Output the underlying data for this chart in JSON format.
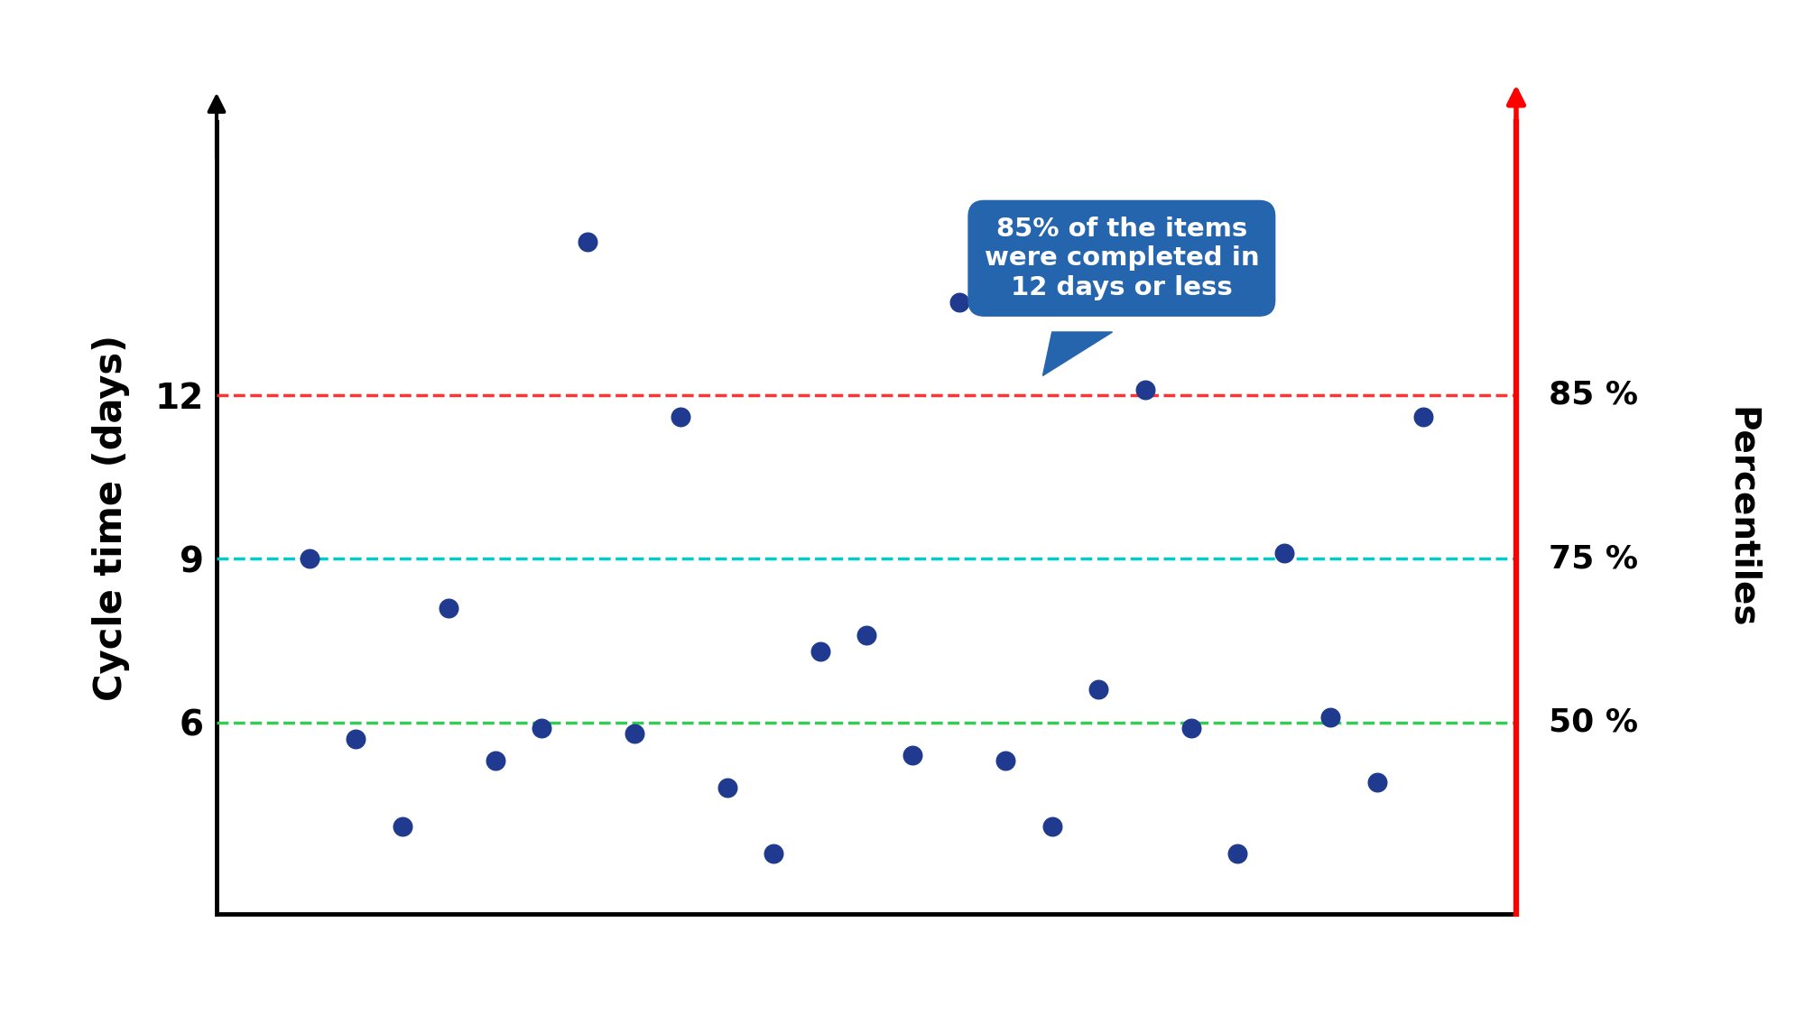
{
  "scatter_x": [
    2,
    3,
    4,
    5,
    6,
    7,
    8,
    9,
    10,
    11,
    12,
    13,
    14,
    15,
    16,
    17,
    18,
    19,
    20,
    21,
    22,
    23,
    24,
    25,
    26
  ],
  "scatter_y": [
    9,
    5.7,
    4.1,
    8.1,
    5.3,
    5.9,
    14.8,
    5.8,
    11.6,
    4.8,
    3.6,
    7.3,
    7.6,
    5.4,
    13.7,
    5.3,
    4.1,
    6.6,
    12.1,
    5.9,
    3.6,
    9.1,
    6.1,
    4.9,
    11.6
  ],
  "dot_color": "#1F3A8F",
  "dot_size": 220,
  "percentile_85_y": 12,
  "percentile_75_y": 9,
  "percentile_50_y": 6,
  "percentile_85_color": "#FF3333",
  "percentile_75_color": "#00CCCC",
  "percentile_50_color": "#33CC55",
  "ylabel": "Cycle time (days)",
  "right_ylabel": "Percentiles",
  "yticks": [
    6,
    9,
    12
  ],
  "ylim": [
    2.5,
    17
  ],
  "xlim": [
    0,
    28
  ],
  "annotation_text": "85% of the items\nwere completed in\n12 days or less",
  "annotation_box_color": "#2565AE",
  "annotation_text_color": "#FFFFFF",
  "right_axis_labels": [
    [
      "85 %",
      12
    ],
    [
      "75 %",
      9
    ],
    [
      "50 %",
      6
    ]
  ],
  "background_color": "#FFFFFF"
}
